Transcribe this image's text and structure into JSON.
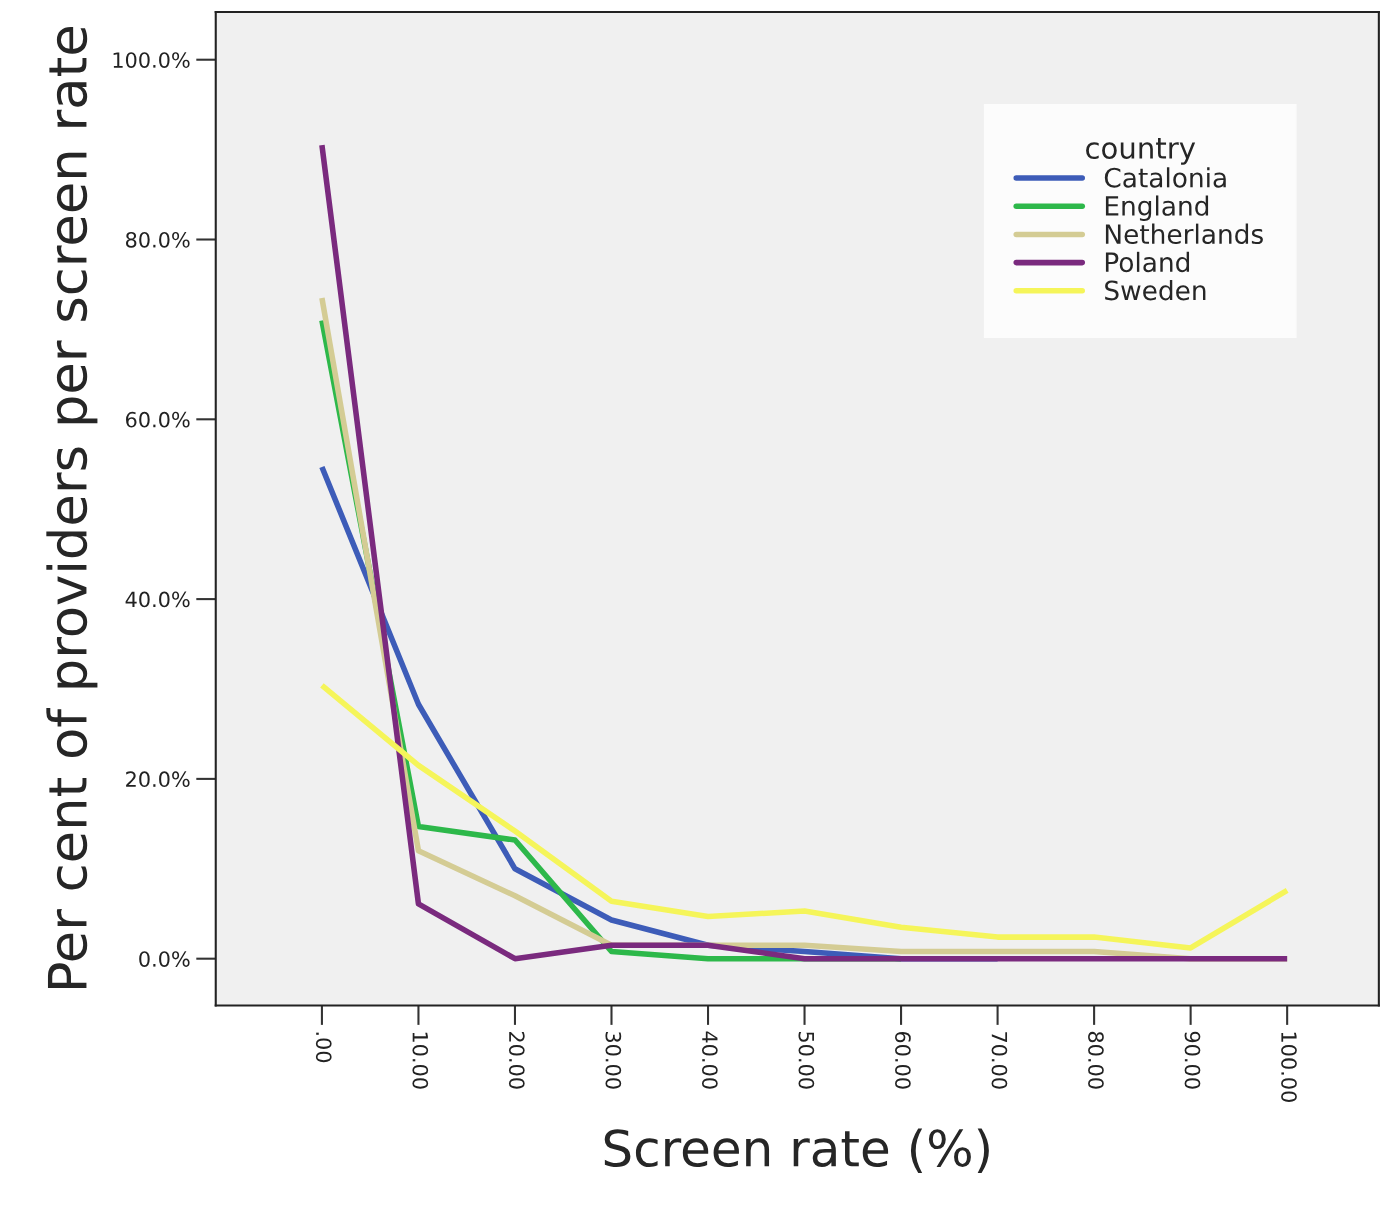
{
  "chart_data": {
    "type": "line",
    "xlabel": "Screen rate (%)",
    "ylabel": "Per cent of providers per screen rate",
    "legend_title": "country",
    "legend": "top right",
    "grid": false,
    "marker": "none",
    "line_style": "solid",
    "x": [
      0,
      10,
      20,
      30,
      40,
      50,
      60,
      70,
      80,
      90,
      100
    ],
    "xlim": [
      -11,
      109.5
    ],
    "ylim": [
      -5.2,
      105.3
    ],
    "xticks": [
      {
        "value": 0,
        "label": ".00"
      },
      {
        "value": 10,
        "label": "10.00"
      },
      {
        "value": 20,
        "label": "20.00"
      },
      {
        "value": 30,
        "label": "30.00"
      },
      {
        "value": 40,
        "label": "40.00"
      },
      {
        "value": 50,
        "label": "50.00"
      },
      {
        "value": 60,
        "label": "60.00"
      },
      {
        "value": 70,
        "label": "70.00"
      },
      {
        "value": 80,
        "label": "80.00"
      },
      {
        "value": 90,
        "label": "90.00"
      },
      {
        "value": 100,
        "label": "100.00"
      }
    ],
    "yticks": [
      {
        "value": 0,
        "label": "0.0%"
      },
      {
        "value": 20,
        "label": "20.0%"
      },
      {
        "value": 40,
        "label": "40.0%"
      },
      {
        "value": 60,
        "label": "60.0%"
      },
      {
        "value": 80,
        "label": "80.0%"
      },
      {
        "value": 100,
        "label": "100.0%"
      }
    ],
    "series": [
      {
        "name": "Catalonia",
        "color": "#3d5cb8",
        "values": [
          54.7,
          28.3,
          10.0,
          4.3,
          1.5,
          0.8,
          0,
          0,
          null,
          null,
          null
        ]
      },
      {
        "name": "England",
        "color": "#2db84a",
        "values": [
          71.0,
          14.7,
          13.2,
          0.8,
          0,
          0,
          0,
          null,
          null,
          null,
          null
        ]
      },
      {
        "name": "Netherlands",
        "color": "#d4cc94",
        "values": [
          73.5,
          12.0,
          7.0,
          1.5,
          1.5,
          1.5,
          0.8,
          0.8,
          0.8,
          0,
          0
        ]
      },
      {
        "name": "Poland",
        "color": "#7a2a7e",
        "values": [
          90.5,
          6.1,
          0,
          1.5,
          1.5,
          0,
          0,
          0,
          0,
          0,
          0
        ]
      },
      {
        "name": "Sweden",
        "color": "#f5f55a",
        "values": [
          30.4,
          21.5,
          14.2,
          6.4,
          4.7,
          5.3,
          3.5,
          2.4,
          2.4,
          1.2,
          7.6
        ]
      }
    ]
  }
}
